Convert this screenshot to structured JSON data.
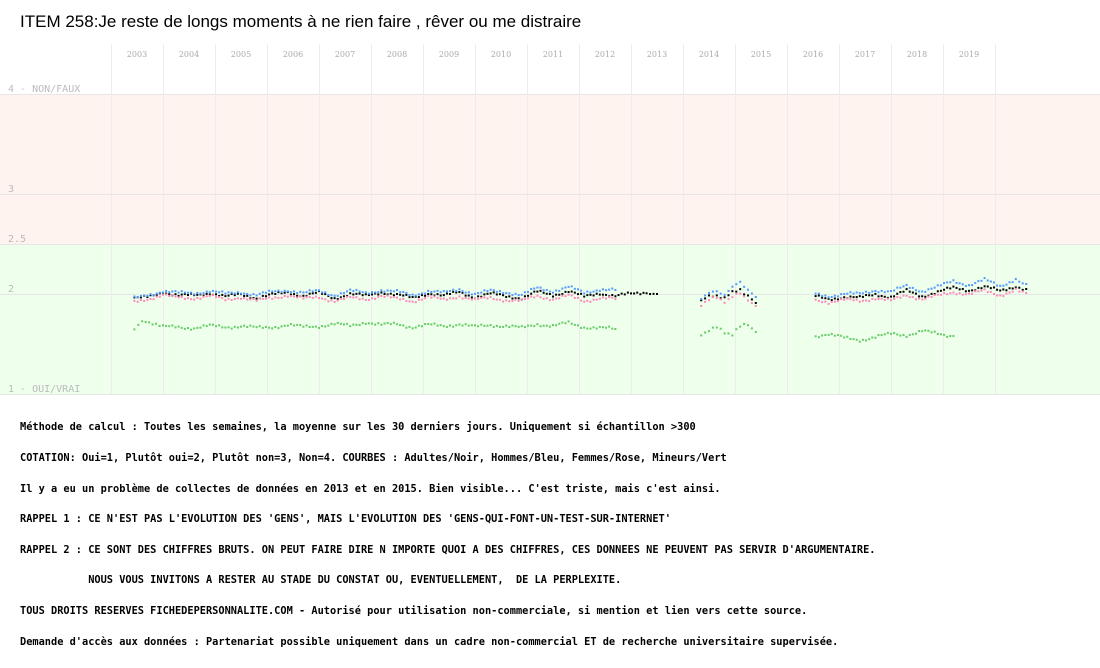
{
  "title": "ITEM 258:Je reste de longs moments à ne rien faire , rêver ou me distraire",
  "chart_data": {
    "type": "scatter",
    "title": "ITEM 258:Je reste de longs moments à ne rien faire , rêver ou me distraire",
    "ylim": [
      1,
      4
    ],
    "y_ticks": [
      {
        "value": 4,
        "label": "4 - NON/FAUX"
      },
      {
        "value": 3,
        "label": "3"
      },
      {
        "value": 2.5,
        "label": "2.5"
      },
      {
        "value": 2,
        "label": "2"
      },
      {
        "value": 1,
        "label": "1 - OUI/VRAI"
      }
    ],
    "bands": [
      {
        "from": 2.5,
        "to": 4,
        "color": "#fff3ef"
      },
      {
        "from": 1,
        "to": 2.5,
        "color": "#eeffec"
      }
    ],
    "xlim": [
      2002.5,
      2020.5
    ],
    "x_ticks": [
      "2003",
      "2004",
      "2005",
      "2006",
      "2007",
      "2008",
      "2009",
      "2010",
      "2011",
      "2012",
      "2013",
      "2014",
      "2015",
      "2016",
      "2017",
      "2018",
      "2019"
    ],
    "series": [
      {
        "color": "#000000",
        "segments": [
          {
            "x": [
              2002.95,
              2003.2,
              2003.5,
              2003.8,
              2004.1,
              2004.4,
              2004.7,
              2005.0,
              2005.3,
              2005.6,
              2005.9,
              2006.2,
              2006.5,
              2006.8,
              2007.1,
              2007.4,
              2007.7,
              2008.0,
              2008.3,
              2008.6,
              2008.9,
              2009.2,
              2009.5,
              2009.8,
              2010.1,
              2010.4,
              2010.7,
              2011.0,
              2011.3,
              2011.6,
              2011.9,
              2012.2,
              2012.5,
              2012.8,
              2013.0
            ],
            "y": [
              1.95,
              1.97,
              2.02,
              1.98,
              1.99,
              2.01,
              1.97,
              2.0,
              1.96,
              1.99,
              2.02,
              1.98,
              2.01,
              1.96,
              2.0,
              1.98,
              2.02,
              1.99,
              1.96,
              2.01,
              1.98,
              2.02,
              1.97,
              2.0,
              1.98,
              1.96,
              2.02,
              1.99,
              2.03,
              1.97,
              2.01,
              1.98,
              2.0,
              2.02,
              2.0
            ]
          },
          {
            "x": [
              2013.85,
              2014.0,
              2014.15,
              2014.3,
              2014.45,
              2014.6,
              2014.75,
              2014.9
            ],
            "y": [
              1.93,
              1.97,
              1.99,
              1.96,
              2.01,
              2.05,
              1.98,
              1.91
            ]
          },
          {
            "x": [
              2016.05,
              2016.3,
              2016.6,
              2016.9,
              2017.2,
              2017.5,
              2017.8,
              2018.1,
              2018.4,
              2018.7,
              2019.0,
              2019.3,
              2019.6,
              2019.9,
              2020.1
            ],
            "y": [
              1.98,
              1.95,
              1.97,
              1.96,
              2.0,
              1.97,
              2.03,
              1.98,
              2.02,
              2.06,
              2.04,
              2.07,
              2.03,
              2.08,
              2.05
            ]
          }
        ]
      },
      {
        "color": "#5599ff",
        "segments": [
          {
            "x": [
              2002.95,
              2003.2,
              2003.5,
              2003.8,
              2004.1,
              2004.4,
              2004.7,
              2005.0,
              2005.3,
              2005.6,
              2005.9,
              2006.2,
              2006.5,
              2006.8,
              2007.1,
              2007.4,
              2007.7,
              2008.0,
              2008.3,
              2008.6,
              2008.9,
              2009.2,
              2009.5,
              2009.8,
              2010.1,
              2010.4,
              2010.7,
              2011.0,
              2011.3,
              2011.6,
              2011.9,
              2012.2
            ],
            "y": [
              1.96,
              1.99,
              2.03,
              2.01,
              2.01,
              2.03,
              2.0,
              2.02,
              1.99,
              2.02,
              2.04,
              2.01,
              2.03,
              1.99,
              2.03,
              2.01,
              2.04,
              2.02,
              1.99,
              2.03,
              2.01,
              2.05,
              2.0,
              2.03,
              2.02,
              1.99,
              2.06,
              2.03,
              2.07,
              2.01,
              2.05,
              2.04
            ]
          },
          {
            "x": [
              2013.85,
              2014.0,
              2014.15,
              2014.3,
              2014.45,
              2014.6,
              2014.75,
              2014.9
            ],
            "y": [
              1.96,
              2.0,
              2.03,
              2.0,
              2.06,
              2.12,
              2.05,
              1.97
            ]
          },
          {
            "x": [
              2016.05,
              2016.3,
              2016.6,
              2016.9,
              2017.2,
              2017.5,
              2017.8,
              2018.1,
              2018.4,
              2018.7,
              2019.0,
              2019.3,
              2019.6,
              2019.9,
              2020.1
            ],
            "y": [
              2.01,
              1.98,
              2.0,
              2.0,
              2.04,
              2.02,
              2.08,
              2.03,
              2.07,
              2.13,
              2.09,
              2.14,
              2.08,
              2.15,
              2.1
            ]
          }
        ]
      },
      {
        "color": "#ff88bb",
        "segments": [
          {
            "x": [
              2002.95,
              2003.2,
              2003.5,
              2003.8,
              2004.1,
              2004.4,
              2004.7,
              2005.0,
              2005.3,
              2005.6,
              2005.9,
              2006.2,
              2006.5,
              2006.8,
              2007.1,
              2007.4,
              2007.7,
              2008.0,
              2008.3,
              2008.6,
              2008.9,
              2009.2,
              2009.5,
              2009.8,
              2010.1,
              2010.4,
              2010.7,
              2011.0,
              2011.3,
              2011.6,
              2011.9,
              2012.2
            ],
            "y": [
              1.93,
              1.95,
              1.99,
              1.96,
              1.96,
              1.98,
              1.94,
              1.97,
              1.93,
              1.96,
              1.99,
              1.95,
              1.97,
              1.93,
              1.96,
              1.95,
              1.98,
              1.95,
              1.93,
              1.97,
              1.94,
              1.98,
              1.94,
              1.96,
              1.94,
              1.93,
              1.98,
              1.95,
              1.98,
              1.93,
              1.96,
              1.95
            ]
          },
          {
            "x": [
              2013.85,
              2014.0,
              2014.15,
              2014.3,
              2014.45,
              2014.6,
              2014.75,
              2014.9
            ],
            "y": [
              1.9,
              1.94,
              1.96,
              1.93,
              1.97,
              2.0,
              1.95,
              1.88
            ]
          },
          {
            "x": [
              2016.05,
              2016.3,
              2016.6,
              2016.9,
              2017.2,
              2017.5,
              2017.8,
              2018.1,
              2018.4,
              2018.7,
              2019.0,
              2019.3,
              2019.6,
              2019.9,
              2020.1
            ],
            "y": [
              1.95,
              1.92,
              1.94,
              1.93,
              1.96,
              1.93,
              1.99,
              1.95,
              1.98,
              2.02,
              2.0,
              2.03,
              1.99,
              2.04,
              2.01
            ]
          }
        ]
      },
      {
        "color": "#66cc66",
        "segments": [
          {
            "x": [
              2002.95,
              2003.1,
              2003.3,
              2003.5,
              2003.8,
              2004.1,
              2004.4,
              2004.7,
              2005.0,
              2005.3,
              2005.6,
              2005.9,
              2006.2,
              2006.5,
              2006.8,
              2007.1,
              2007.4,
              2007.7,
              2008.0,
              2008.3,
              2008.6,
              2008.9,
              2009.2,
              2009.5,
              2009.8,
              2010.1,
              2010.4,
              2010.7,
              2011.0,
              2011.3,
              2011.6,
              2011.9,
              2012.2
            ],
            "y": [
              1.66,
              1.72,
              1.69,
              1.67,
              1.67,
              1.66,
              1.68,
              1.67,
              1.68,
              1.66,
              1.67,
              1.69,
              1.67,
              1.68,
              1.7,
              1.68,
              1.72,
              1.69,
              1.7,
              1.67,
              1.69,
              1.68,
              1.7,
              1.67,
              1.69,
              1.68,
              1.66,
              1.7,
              1.68,
              1.71,
              1.67,
              1.66,
              1.65
            ]
          },
          {
            "x": [
              2013.85,
              2014.0,
              2014.15,
              2014.3,
              2014.45,
              2014.6,
              2014.75,
              2014.9
            ],
            "y": [
              1.6,
              1.64,
              1.66,
              1.62,
              1.6,
              1.67,
              1.7,
              1.62
            ]
          },
          {
            "x": [
              2016.05,
              2016.3,
              2016.6,
              2016.9,
              2017.2,
              2017.5,
              2017.8,
              2018.1,
              2018.4,
              2018.7
            ],
            "y": [
              1.58,
              1.6,
              1.56,
              1.54,
              1.57,
              1.6,
              1.59,
              1.63,
              1.6,
              1.58
            ]
          }
        ]
      }
    ]
  },
  "notes": [
    "Méthode de calcul : Toutes les semaines, la moyenne sur les 30 derniers jours. Uniquement si échantillon >300",
    "COTATION: Oui=1, Plutôt oui=2, Plutôt non=3, Non=4. COURBES : Adultes/Noir, Hommes/Bleu, Femmes/Rose, Mineurs/Vert",
    "Il y a eu un problème de collectes de données en 2013 et en 2015. Bien visible... C'est triste, mais c'est ainsi.",
    "RAPPEL 1 : CE N'EST PAS L'EVOLUTION DES 'GENS', MAIS L'EVOLUTION DES 'GENS-QUI-FONT-UN-TEST-SUR-INTERNET'",
    "RAPPEL 2 : CE SONT DES CHIFFRES BRUTS. ON PEUT FAIRE DIRE N IMPORTE QUOI A DES CHIFFRES, CES DONNEES NE PEUVENT PAS SERVIR D'ARGUMENTAIRE.",
    "           NOUS VOUS INVITONS A RESTER AU STADE DU CONSTAT OU, EVENTUELLEMENT,  DE LA PERPLEXITE.",
    "TOUS DROITS RESERVES FICHEDEPERSONNALITE.COM - Autorisé pour utilisation non-commerciale, si mention et lien vers cette source.",
    "Demande d'accès aux données : Partenariat possible uniquement dans un cadre non-commercial ET de recherche universitaire supervisée."
  ]
}
